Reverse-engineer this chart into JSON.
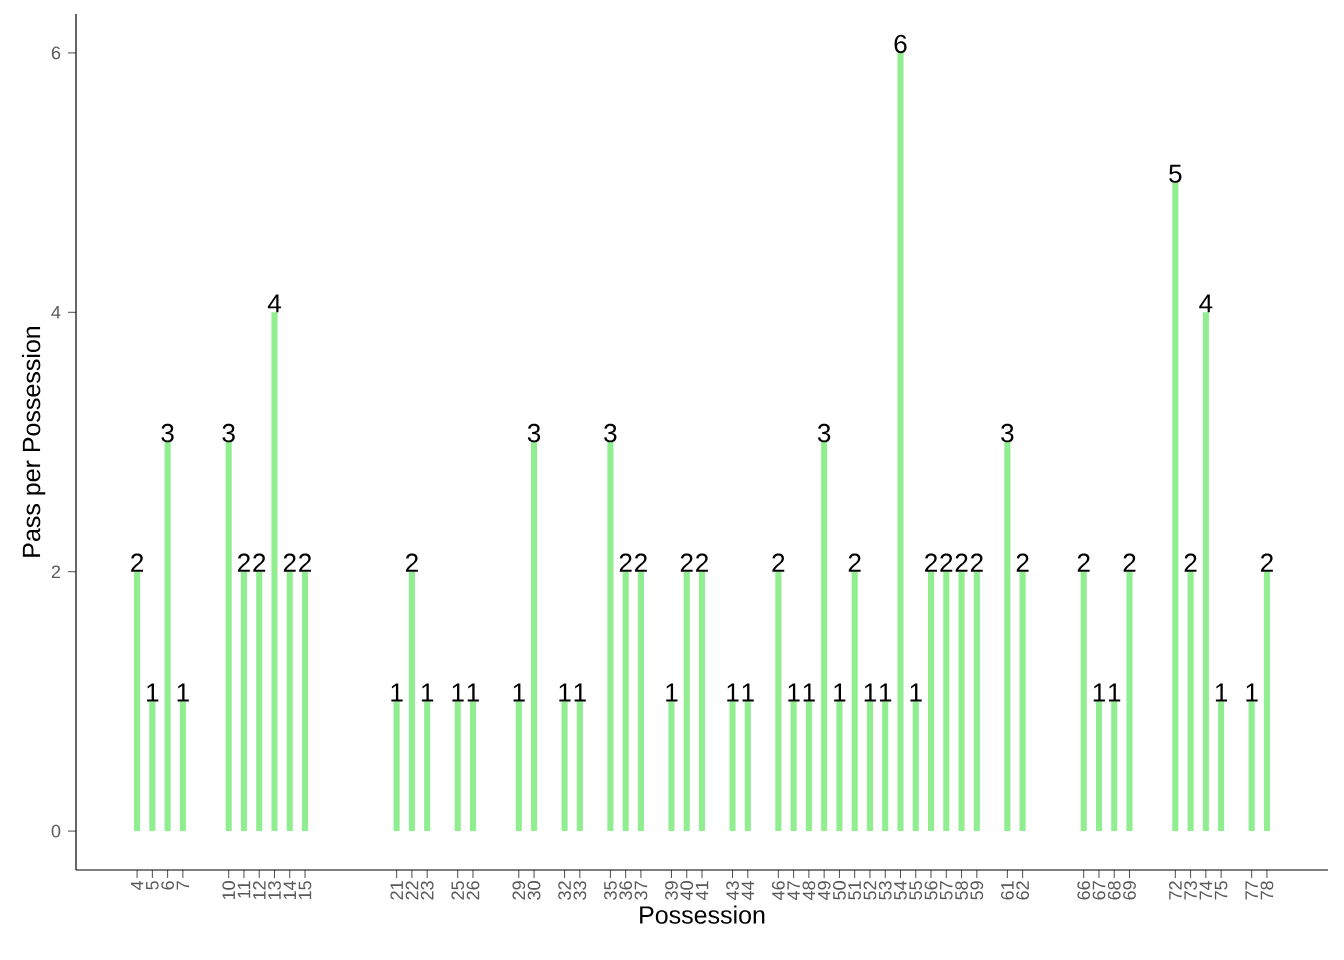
{
  "chart_data": {
    "type": "bar",
    "xlabel": "Possession",
    "ylabel": "Pass per Possession",
    "x": [
      4,
      5,
      6,
      7,
      10,
      11,
      12,
      13,
      14,
      15,
      21,
      22,
      23,
      25,
      26,
      29,
      30,
      32,
      33,
      35,
      36,
      37,
      39,
      40,
      41,
      43,
      44,
      46,
      47,
      48,
      49,
      50,
      51,
      52,
      53,
      54,
      55,
      56,
      57,
      58,
      59,
      61,
      62,
      66,
      67,
      68,
      69,
      72,
      73,
      74,
      75,
      77,
      78
    ],
    "values": [
      2,
      1,
      3,
      1,
      3,
      2,
      2,
      4,
      2,
      2,
      1,
      2,
      1,
      1,
      1,
      1,
      3,
      1,
      1,
      3,
      2,
      2,
      1,
      2,
      2,
      1,
      1,
      2,
      1,
      1,
      3,
      1,
      2,
      1,
      1,
      6,
      1,
      2,
      2,
      2,
      2,
      3,
      2,
      2,
      1,
      1,
      2,
      5,
      2,
      4,
      1,
      1,
      2
    ],
    "color": "#90ee90",
    "data_labels": true,
    "xlim": [
      0,
      82
    ],
    "ylim": [
      -0.3,
      6.3
    ],
    "xticks": [
      4,
      5,
      6,
      7,
      10,
      11,
      12,
      13,
      14,
      15,
      21,
      22,
      23,
      25,
      26,
      29,
      30,
      32,
      33,
      35,
      36,
      37,
      39,
      40,
      41,
      43,
      44,
      46,
      47,
      48,
      49,
      50,
      51,
      52,
      53,
      54,
      55,
      56,
      57,
      58,
      59,
      61,
      62,
      66,
      67,
      68,
      69,
      72,
      73,
      74,
      75,
      77,
      78
    ],
    "yticks": [
      0,
      2,
      4,
      6
    ]
  }
}
